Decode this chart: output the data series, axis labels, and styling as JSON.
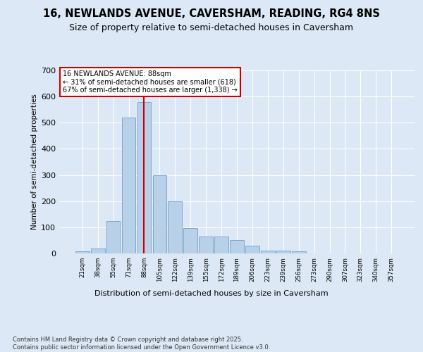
{
  "title": "16, NEWLANDS AVENUE, CAVERSHAM, READING, RG4 8NS",
  "subtitle": "Size of property relative to semi-detached houses in Caversham",
  "xlabel": "Distribution of semi-detached houses by size in Caversham",
  "ylabel": "Number of semi-detached properties",
  "categories": [
    "21sqm",
    "38sqm",
    "55sqm",
    "71sqm",
    "88sqm",
    "105sqm",
    "122sqm",
    "139sqm",
    "155sqm",
    "172sqm",
    "189sqm",
    "206sqm",
    "223sqm",
    "239sqm",
    "256sqm",
    "273sqm",
    "290sqm",
    "307sqm",
    "323sqm",
    "340sqm",
    "357sqm"
  ],
  "values": [
    8,
    18,
    125,
    520,
    580,
    300,
    198,
    97,
    65,
    65,
    52,
    30,
    12,
    10,
    8,
    0,
    0,
    0,
    0,
    0,
    0
  ],
  "bar_color": "#b8d0e8",
  "bar_edge_color": "#6fa0c8",
  "vline_idx": 4,
  "vline_color": "#cc0000",
  "annotation_box_edge": "#cc0000",
  "property_label": "16 NEWLANDS AVENUE: 88sqm",
  "annotation_line1": "← 31% of semi-detached houses are smaller (618)",
  "annotation_line2": "67% of semi-detached houses are larger (1,338) →",
  "ylim": [
    0,
    700
  ],
  "yticks": [
    0,
    100,
    200,
    300,
    400,
    500,
    600,
    700
  ],
  "bg_color": "#dce8f5",
  "plot_bg_color": "#dce8f5",
  "footer": "Contains HM Land Registry data © Crown copyright and database right 2025.\nContains public sector information licensed under the Open Government Licence v3.0.",
  "title_fontsize": 10.5,
  "subtitle_fontsize": 9
}
